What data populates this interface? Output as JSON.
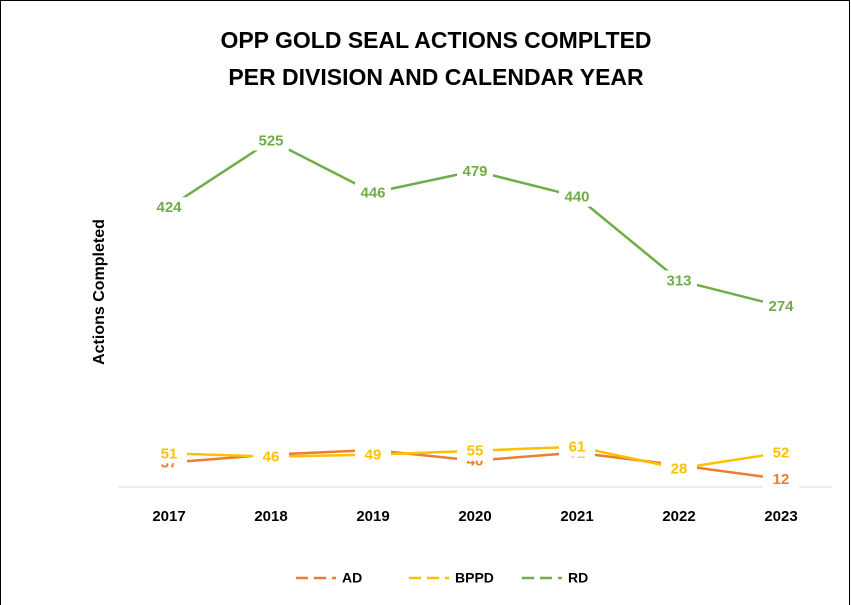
{
  "chart_data": {
    "type": "line",
    "title": [
      "OPP GOLD SEAL ACTIONS COMPLTED",
      "PER DIVISION AND CALENDAR YEAR"
    ],
    "y_label": "Actions Completed",
    "categories": [
      "2017",
      "2018",
      "2019",
      "2020",
      "2021",
      "2022",
      "2023"
    ],
    "series": [
      {
        "name": "AD",
        "color": "#ed7d31",
        "values": [
          37,
          49,
          56,
          40,
          52,
          33,
          12
        ]
      },
      {
        "name": "BPPD",
        "color": "#ffc000",
        "values": [
          51,
          46,
          49,
          55,
          61,
          28,
          52
        ]
      },
      {
        "name": "RD",
        "color": "#70ad47",
        "values": [
          424,
          525,
          446,
          479,
          440,
          313,
          274
        ]
      }
    ],
    "ylim": [
      0,
      600
    ],
    "legend": "bottom"
  }
}
